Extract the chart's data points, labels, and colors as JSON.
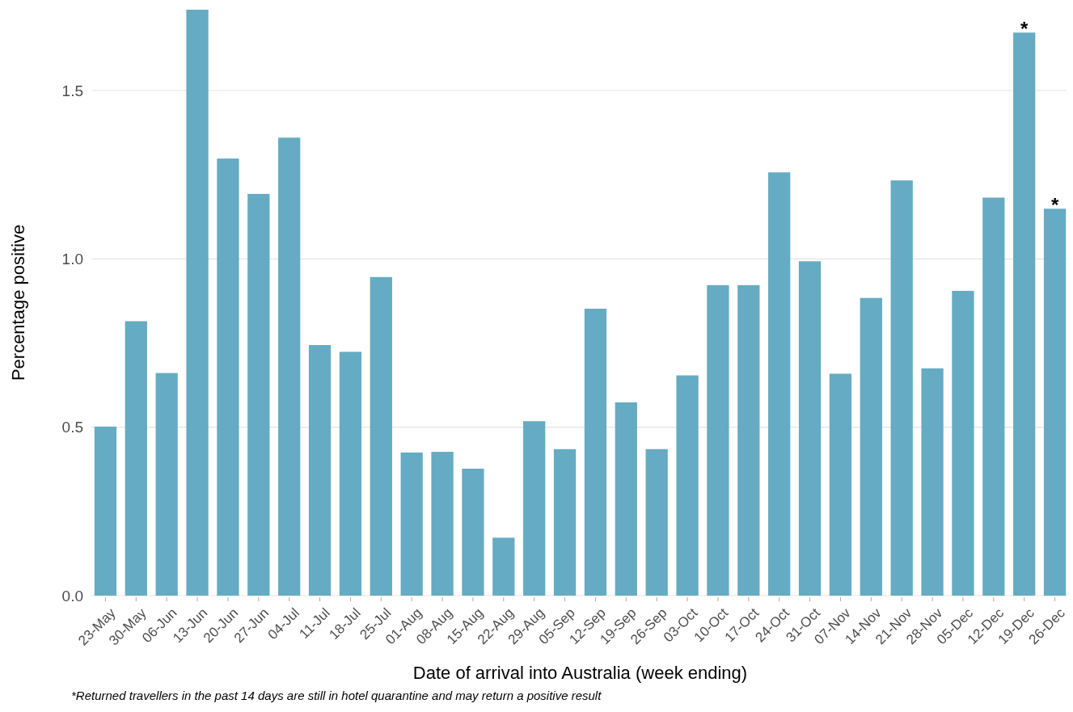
{
  "chart_data": {
    "type": "bar",
    "xlabel": "Date of arrival into Australia (week ending)",
    "ylabel": "Percentage positive",
    "categories": [
      "23-May",
      "30-May",
      "06-Jun",
      "13-Jun",
      "20-Jun",
      "27-Jun",
      "04-Jul",
      "11-Jul",
      "18-Jul",
      "25-Jul",
      "01-Aug",
      "08-Aug",
      "15-Aug",
      "22-Aug",
      "29-Aug",
      "05-Sep",
      "12-Sep",
      "19-Sep",
      "26-Sep",
      "03-Oct",
      "10-Oct",
      "17-Oct",
      "24-Oct",
      "31-Oct",
      "07-Nov",
      "14-Nov",
      "21-Nov",
      "28-Nov",
      "05-Dec",
      "12-Dec",
      "19-Dec",
      "26-Dec"
    ],
    "values": [
      0.502,
      0.815,
      0.661,
      1.74,
      1.298,
      1.193,
      1.36,
      0.744,
      0.724,
      0.946,
      0.425,
      0.427,
      0.377,
      0.172,
      0.518,
      0.435,
      0.852,
      0.574,
      0.435,
      0.654,
      0.922,
      0.922,
      1.257,
      0.993,
      0.659,
      0.884,
      1.233,
      0.675,
      0.905,
      1.182,
      1.672,
      1.149
    ],
    "color": "#65abc3",
    "ylim": [
      0,
      1.74
    ],
    "yticks": [
      {
        "value": 0,
        "label": "0.0"
      },
      {
        "value": 0.5,
        "label": "0.5"
      },
      {
        "value": 1,
        "label": "1.0"
      },
      1.5
    ],
    "grid": "y",
    "annotations": [
      {
        "text": "*",
        "x": "19-Dec",
        "y": 1.672
      },
      {
        "text": "*",
        "x": "26-Dec",
        "y": 1.149
      },
      "*Returned travellers in the past 14 days are still in hotel quarantine and may return a positive result"
    ]
  }
}
